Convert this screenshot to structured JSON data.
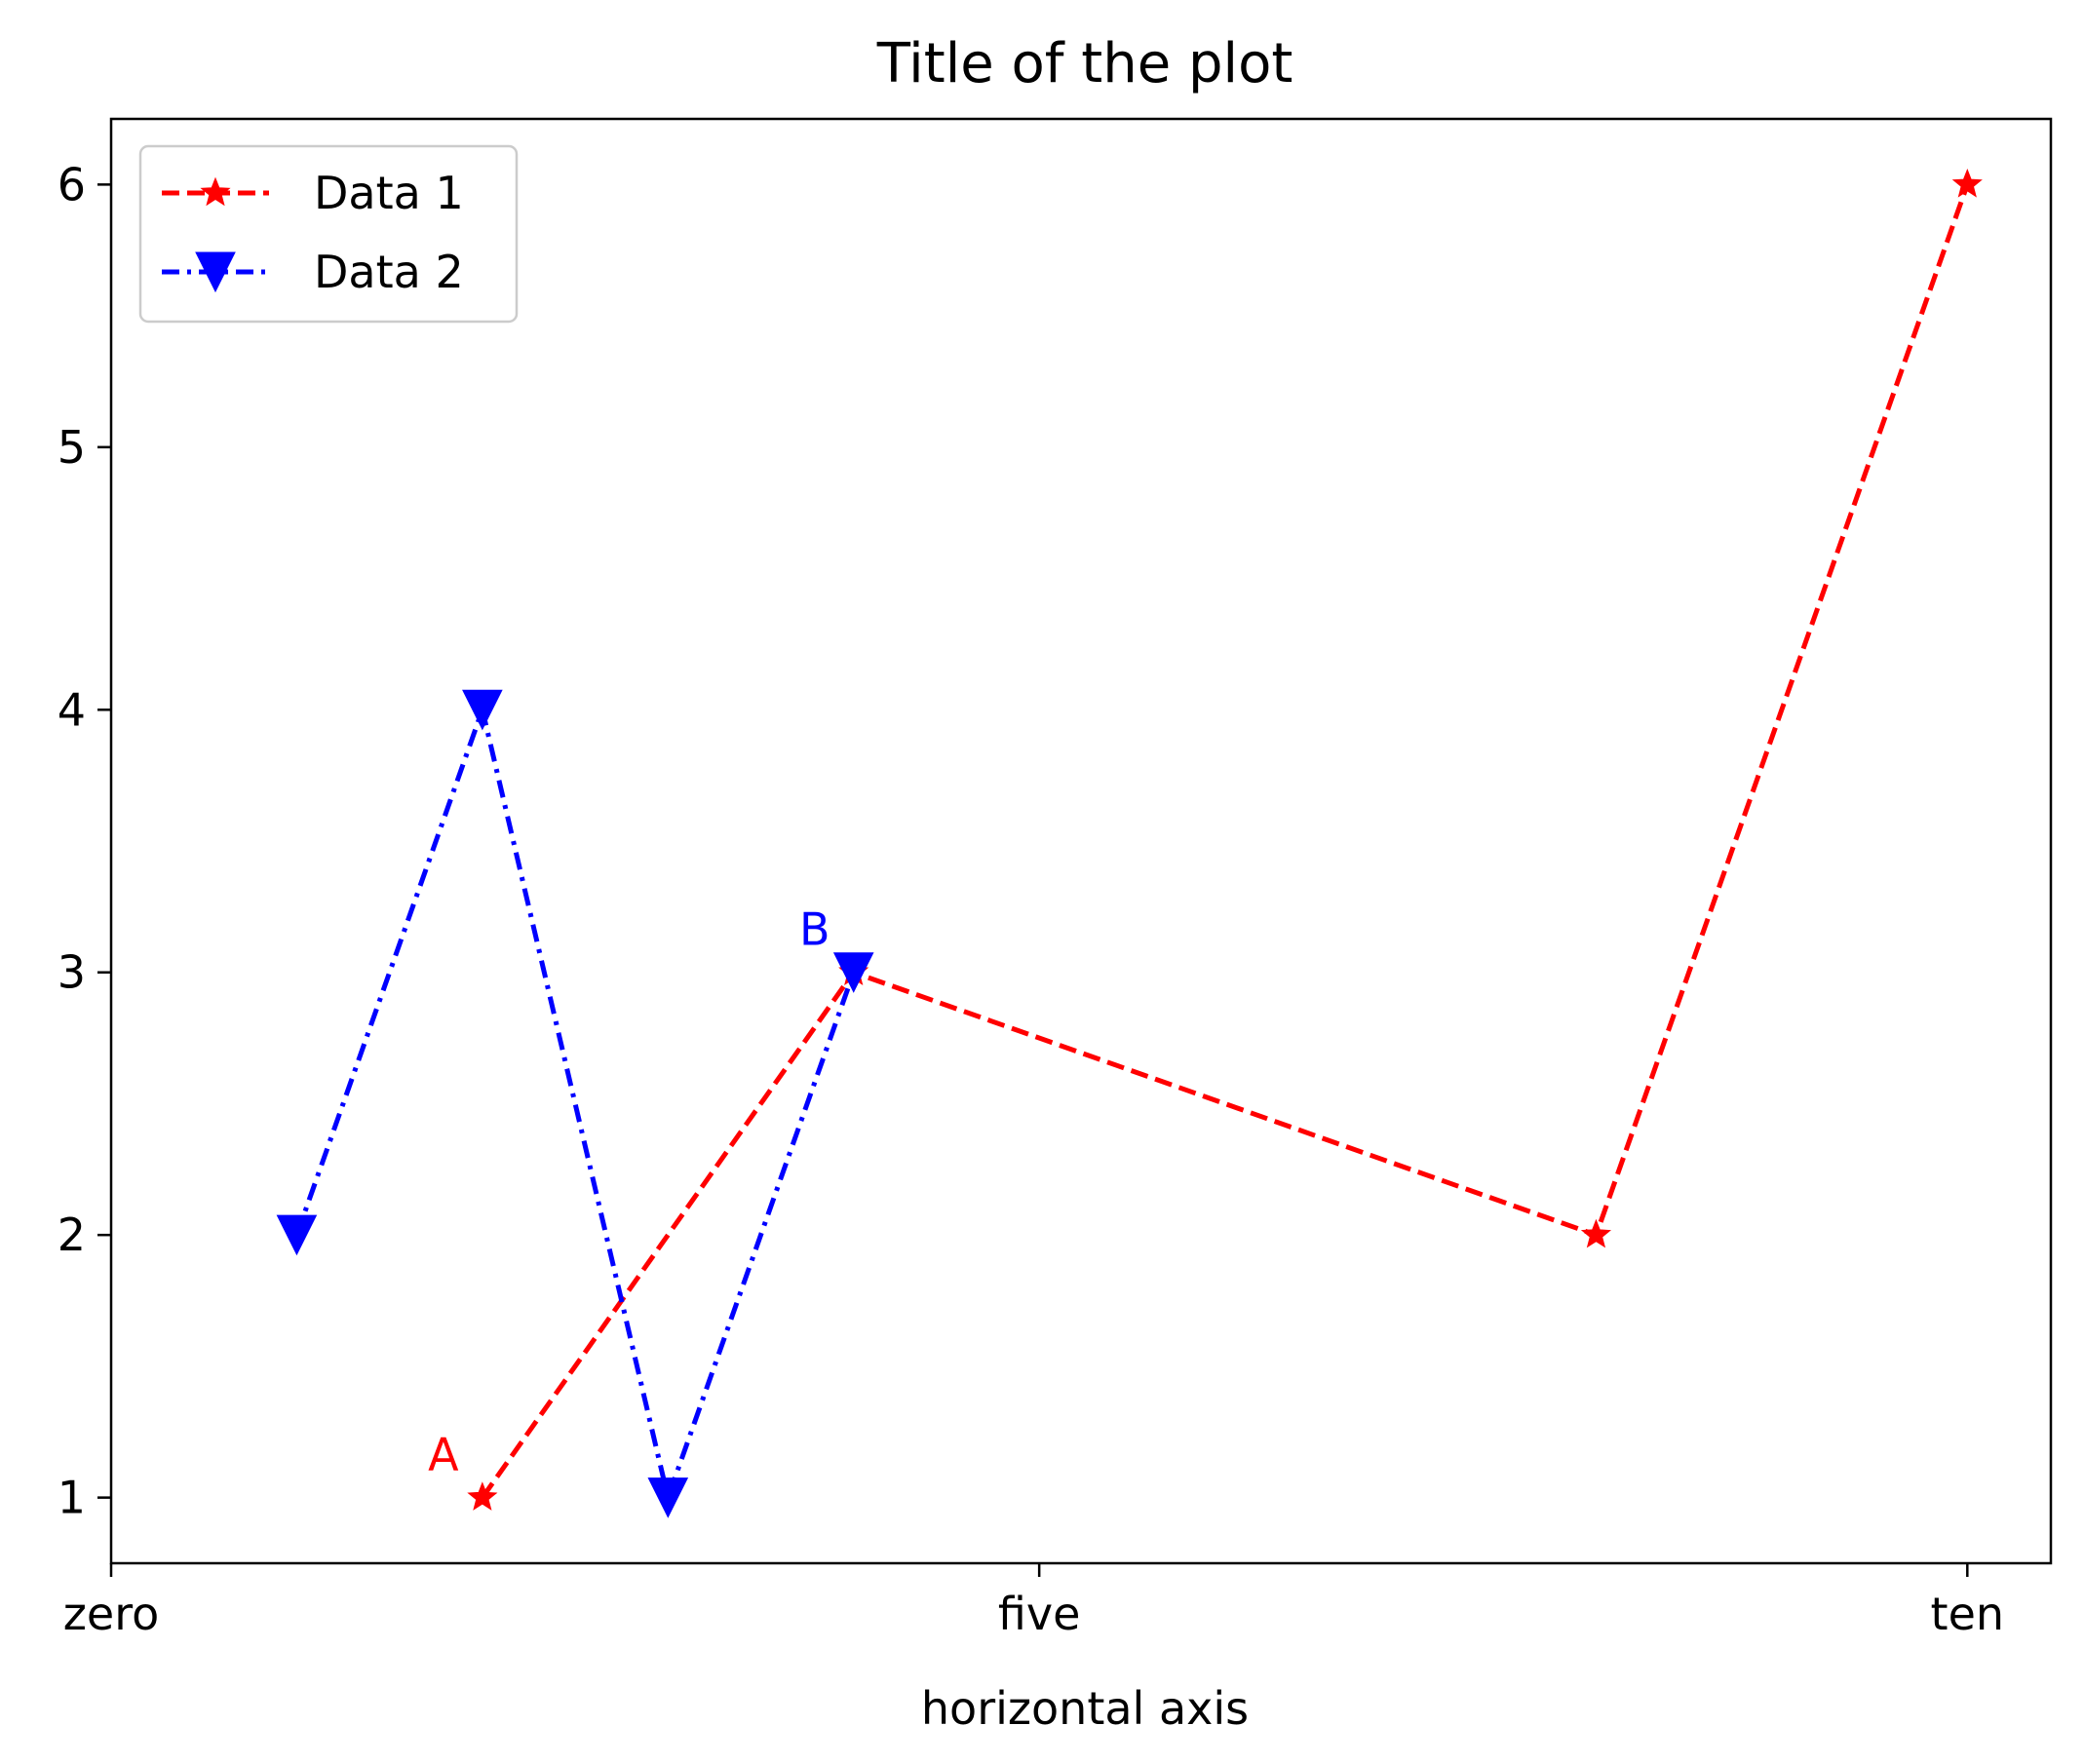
{
  "chart_data": {
    "type": "line",
    "title": "Title of the plot",
    "xlabel": "horizontal axis",
    "ylabel": "",
    "xlim": [
      0,
      10.45
    ],
    "ylim": [
      0.75,
      6.25
    ],
    "xticks": [
      {
        "value": 0,
        "label": "zero"
      },
      {
        "value": 5,
        "label": "five"
      },
      {
        "value": 10,
        "label": "ten"
      }
    ],
    "yticks": [
      {
        "value": 1,
        "label": "1"
      },
      {
        "value": 2,
        "label": "2"
      },
      {
        "value": 3,
        "label": "3"
      },
      {
        "value": 4,
        "label": "4"
      },
      {
        "value": 5,
        "label": "5"
      },
      {
        "value": 6,
        "label": "6"
      }
    ],
    "grid": false,
    "legend_position": "top-left",
    "series": [
      {
        "name": "Data 1",
        "color": "#ff0000",
        "linestyle": "dashed",
        "marker": "star",
        "x": [
          2,
          4,
          8,
          10
        ],
        "y": [
          1,
          3,
          2,
          6
        ]
      },
      {
        "name": "Data 2",
        "color": "#0000ff",
        "linestyle": "dashdot",
        "marker": "triangle-down",
        "x": [
          1,
          2,
          3,
          4
        ],
        "y": [
          2,
          4,
          1,
          3
        ]
      }
    ],
    "annotations": [
      {
        "text": "A",
        "x": 2,
        "y": 1,
        "color": "#ff0000"
      },
      {
        "text": "B",
        "x": 4,
        "y": 3,
        "color": "#0000ff"
      }
    ]
  }
}
